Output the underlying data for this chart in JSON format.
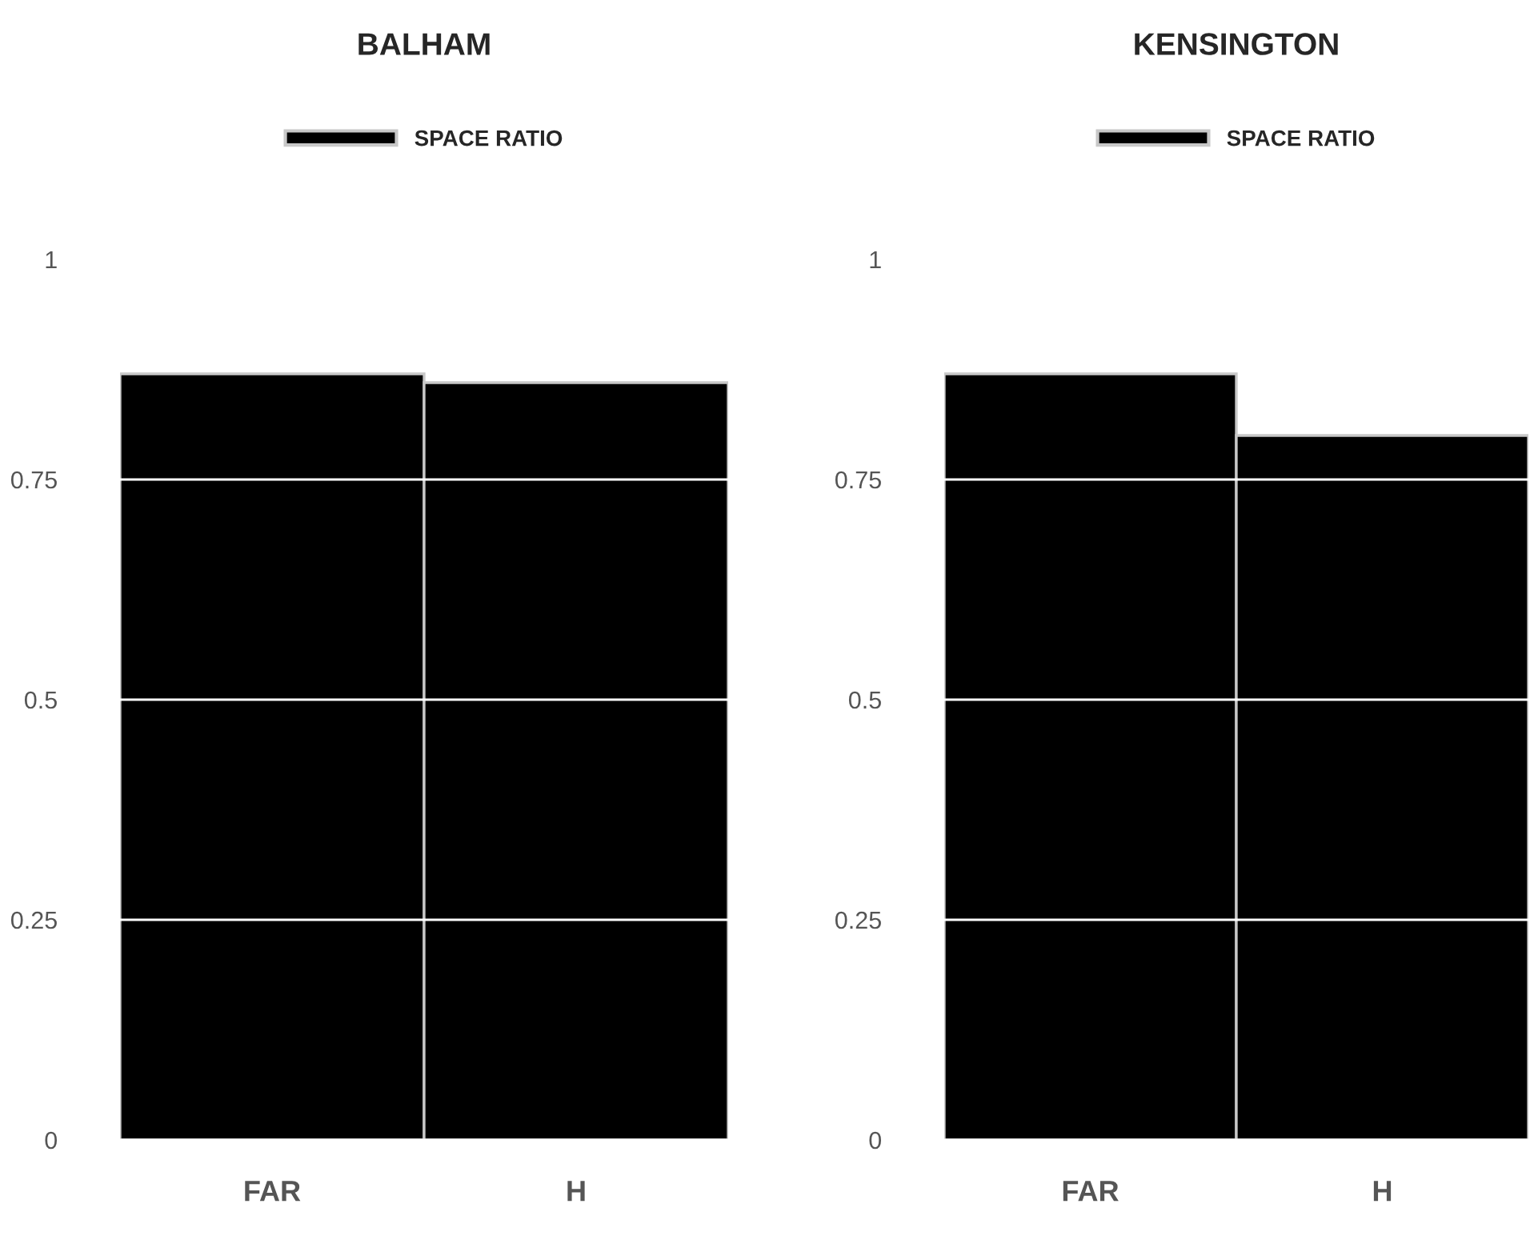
{
  "chart_data": [
    {
      "type": "bar",
      "title": "BALHAM",
      "categories": [
        "FAR",
        "H"
      ],
      "series": [
        {
          "name": "SPACE RATIO",
          "color": "#000000",
          "values": [
            0.87,
            0.86
          ]
        }
      ],
      "ylim": [
        0,
        1
      ],
      "yticks": [
        0,
        0.25,
        0.5,
        0.75,
        1
      ],
      "grid": "y",
      "legend": "top"
    },
    {
      "type": "bar",
      "title": "KENSINGTON",
      "categories": [
        "FAR",
        "H"
      ],
      "series": [
        {
          "name": "SPACE RATIO",
          "color": "#000000",
          "values": [
            0.87,
            0.8
          ]
        }
      ],
      "ylim": [
        0,
        1
      ],
      "yticks": [
        0,
        0.25,
        0.5,
        0.75,
        1
      ],
      "grid": "y",
      "legend": "top"
    }
  ]
}
